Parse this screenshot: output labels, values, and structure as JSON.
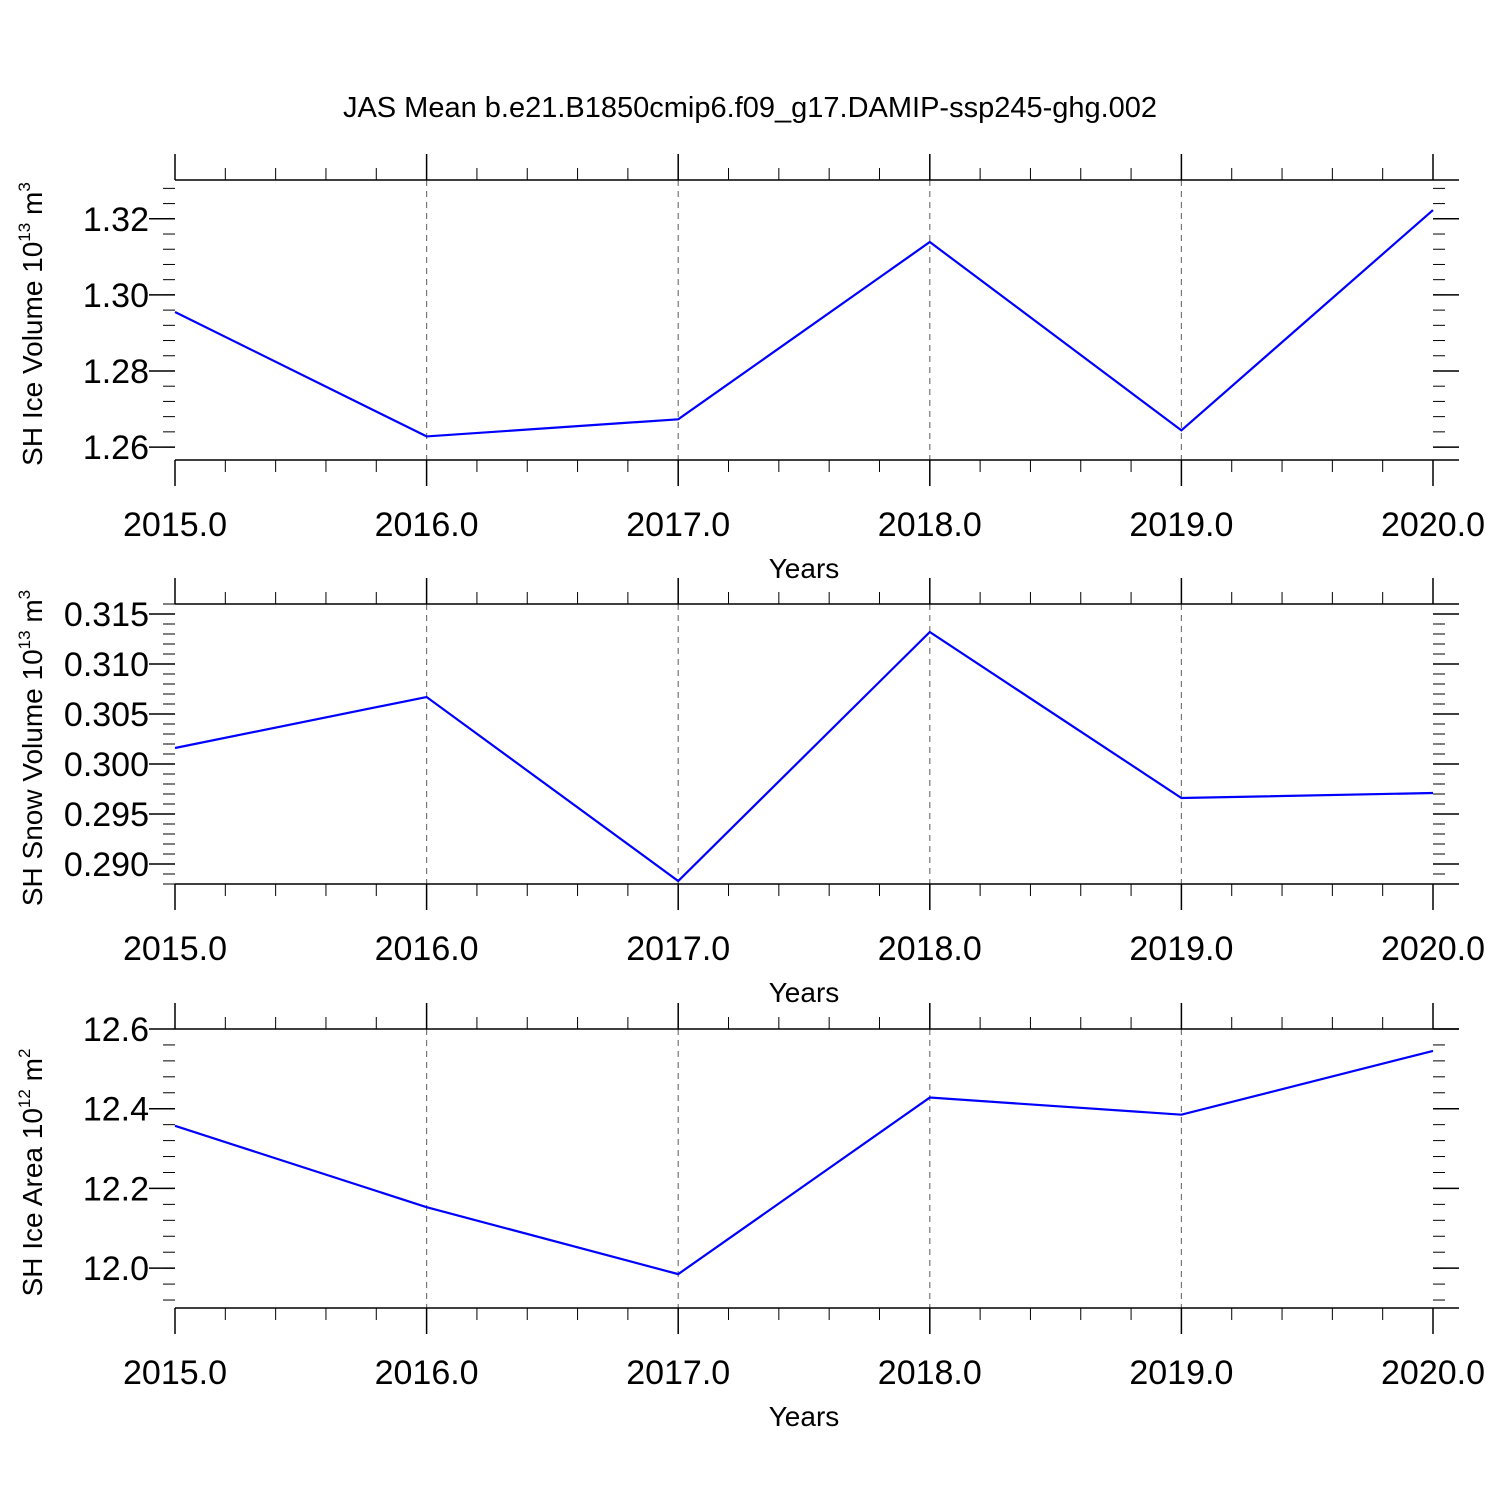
{
  "title": "JAS Mean b.e21.B1850cmip6.f09_g17.DAMIP-ssp245-ghg.002",
  "chart_data": [
    {
      "type": "line",
      "xlabel": "Years",
      "ylabel": {
        "text": "SH Ice Volume 10",
        "exp": "13",
        "unit": " m",
        "unit_exp": "3"
      },
      "x": [
        2015,
        2016,
        2017,
        2018,
        2019,
        2020
      ],
      "x_tick_labels": [
        "2015.0",
        "2016.0",
        "2017.0",
        "2018.0",
        "2019.0",
        "2020.0"
      ],
      "xlim": [
        2015,
        2020
      ],
      "ylim": [
        1.2566,
        1.3302
      ],
      "y_ticks": [
        1.26,
        1.28,
        1.3,
        1.32
      ],
      "y_tick_labels": [
        "1.26",
        "1.28",
        "1.30",
        "1.32"
      ],
      "y_minor_step": 0.004,
      "grid": "vertical dashed",
      "color": "#0000ff",
      "series": [
        {
          "values": [
            1.2955,
            1.2628,
            1.2673,
            1.3139,
            1.2644,
            1.3223
          ]
        }
      ]
    },
    {
      "type": "line",
      "xlabel": "Years",
      "ylabel": {
        "text": "SH Snow Volume 10",
        "exp": "13",
        "unit": " m",
        "unit_exp": "3"
      },
      "x": [
        2015,
        2016,
        2017,
        2018,
        2019,
        2020
      ],
      "x_tick_labels": [
        "2015.0",
        "2016.0",
        "2017.0",
        "2018.0",
        "2019.0",
        "2020.0"
      ],
      "xlim": [
        2015,
        2020
      ],
      "ylim": [
        0.288,
        0.316
      ],
      "y_ticks": [
        0.29,
        0.295,
        0.3,
        0.305,
        0.31,
        0.315
      ],
      "y_tick_labels": [
        "0.290",
        "0.295",
        "0.300",
        "0.305",
        "0.310",
        "0.315"
      ],
      "y_minor_step": 0.001,
      "grid": "vertical dashed",
      "color": "#0000ff",
      "series": [
        {
          "values": [
            0.3016,
            0.3067,
            0.2883,
            0.3132,
            0.2966,
            0.2971
          ]
        }
      ]
    },
    {
      "type": "line",
      "xlabel": "Years",
      "ylabel": {
        "text": "SH Ice Area 10",
        "exp": "12",
        "unit": " m",
        "unit_exp": "2"
      },
      "x": [
        2015,
        2016,
        2017,
        2018,
        2019,
        2020
      ],
      "x_tick_labels": [
        "2015.0",
        "2016.0",
        "2017.0",
        "2018.0",
        "2019.0",
        "2020.0"
      ],
      "xlim": [
        2015,
        2020
      ],
      "ylim": [
        11.9,
        12.6
      ],
      "y_ticks": [
        12.0,
        12.2,
        12.4,
        12.6
      ],
      "y_tick_labels": [
        "12.0",
        "12.2",
        "12.4",
        "12.6"
      ],
      "y_minor_step": 0.04,
      "grid": "vertical dashed",
      "color": "#0000ff",
      "series": [
        {
          "values": [
            12.357,
            12.153,
            11.985,
            12.428,
            12.385,
            12.545
          ]
        }
      ]
    }
  ]
}
